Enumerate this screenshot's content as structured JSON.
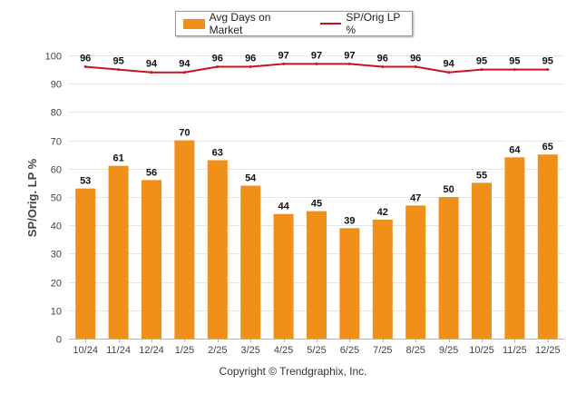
{
  "chart_data": {
    "type": "bar",
    "categories": [
      "10/24",
      "11/24",
      "12/24",
      "1/25",
      "2/25",
      "3/25",
      "4/25",
      "5/25",
      "6/25",
      "7/25",
      "8/25",
      "9/25",
      "10/25",
      "11/25",
      "12/25"
    ],
    "series": [
      {
        "name": "Avg Days on Market",
        "kind": "bar",
        "color": "#f0901a",
        "values": [
          53,
          61,
          56,
          70,
          63,
          54,
          44,
          45,
          39,
          42,
          47,
          50,
          55,
          64,
          65
        ]
      },
      {
        "name": "SP/Orig LP %",
        "kind": "line",
        "color": "#c8141e",
        "values": [
          96,
          95,
          94,
          94,
          96,
          96,
          97,
          97,
          97,
          96,
          96,
          94,
          95,
          95,
          95
        ]
      }
    ],
    "ylabel": "SP/Orig. LP %",
    "xlabel": "",
    "ylim": [
      0,
      100
    ],
    "yticks": [
      0,
      10,
      20,
      30,
      40,
      50,
      60,
      70,
      80,
      90,
      100
    ],
    "grid": true,
    "legend": "top-center"
  },
  "footer": {
    "copyright": "Copyright © Trendgraphix, Inc."
  }
}
